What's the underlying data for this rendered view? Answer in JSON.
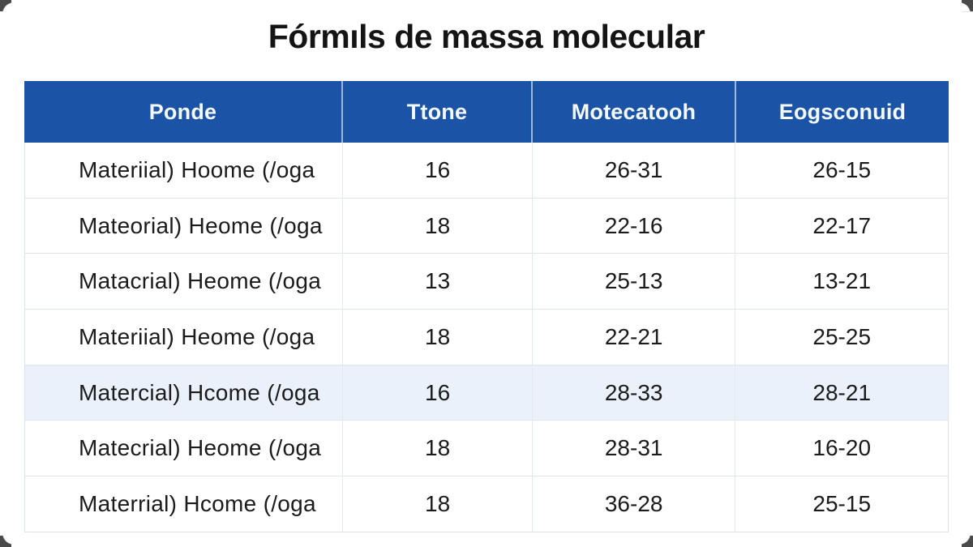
{
  "title": "Fórmıls de massa molecular",
  "table": {
    "headers": [
      "Ponde",
      "Ttone",
      "Motecatooh",
      "Eogsconuid"
    ],
    "rows": [
      {
        "ponde": "Materiial) Hoome (/oga",
        "ttone": "16",
        "motecatooh": "26-31",
        "eogsconuid": "26-15",
        "highlight": false
      },
      {
        "ponde": "Mateorial) Heome (/oga",
        "ttone": "18",
        "motecatooh": "22-16",
        "eogsconuid": "22-17",
        "highlight": false
      },
      {
        "ponde": "Matacrial) Heome (/oga",
        "ttone": "13",
        "motecatooh": "25-13",
        "eogsconuid": "13-21",
        "highlight": false
      },
      {
        "ponde": "Materiial) Heome (/oga",
        "ttone": "18",
        "motecatooh": "22-21",
        "eogsconuid": "25-25",
        "highlight": false
      },
      {
        "ponde": "Matercial) Hcome (/oga",
        "ttone": "16",
        "motecatooh": "28-33",
        "eogsconuid": "28-21",
        "highlight": true
      },
      {
        "ponde": "Matecrial) Heome (/oga",
        "ttone": "18",
        "motecatooh": "28-31",
        "eogsconuid": "16-20",
        "highlight": false
      },
      {
        "ponde": "Materrial) Hcome (/oga",
        "ttone": "18",
        "motecatooh": "36-28",
        "eogsconuid": "25-15",
        "highlight": false
      }
    ]
  },
  "colors": {
    "header_bg": "#1b53a6",
    "header_text": "#f4f8ff",
    "header_divider": "#9db9e2",
    "highlight_row_bg": "#eaf1fa",
    "row_border": "#e0e4ec",
    "body_text": "#1b1b1b",
    "title_text": "#141414"
  }
}
